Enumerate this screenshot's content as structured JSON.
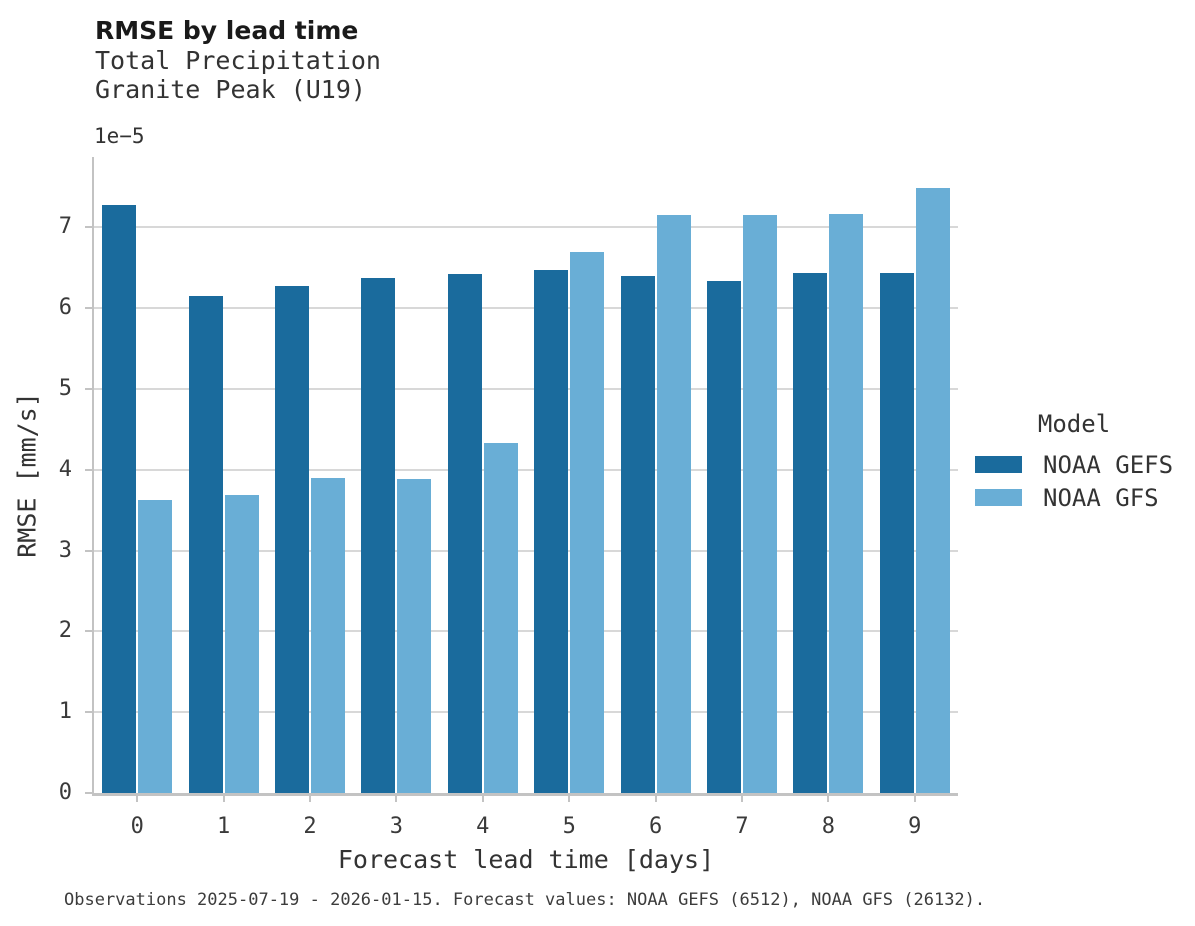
{
  "header": {
    "title": "RMSE by lead time",
    "subtitle_line1": "Total Precipitation",
    "subtitle_line2": "Granite Peak (U19)"
  },
  "legend": {
    "title": "Model"
  },
  "footer": {
    "note": "Observations 2025-07-19 - 2026-01-15. Forecast values: NOAA GEFS (6512), NOAA GFS (26132)."
  },
  "chart_data": {
    "type": "bar",
    "title": "RMSE by lead time",
    "subtitle": [
      "Total Precipitation",
      "Granite Peak (U19)"
    ],
    "xlabel": "Forecast lead time [days]",
    "ylabel": "RMSE [mm/s]",
    "y_offset_label": "1e−5",
    "y_unit_scale": "1e-5",
    "categories": [
      "0",
      "1",
      "2",
      "3",
      "4",
      "5",
      "6",
      "7",
      "8",
      "9"
    ],
    "series": [
      {
        "name": "NOAA GEFS",
        "color": "#1A6B9D",
        "values": [
          7.27,
          6.15,
          6.27,
          6.37,
          6.42,
          6.47,
          6.4,
          6.34,
          6.43,
          6.44
        ]
      },
      {
        "name": "NOAA GFS",
        "color": "#69AED6",
        "values": [
          3.62,
          3.69,
          3.9,
          3.88,
          4.33,
          6.69,
          7.15,
          7.15,
          7.16,
          7.49
        ]
      }
    ],
    "ylim": [
      0,
      7.87
    ],
    "yticks": [
      0,
      1,
      2,
      3,
      4,
      5,
      6,
      7
    ],
    "grid": "horizontal",
    "gridline_color": "#d8d8d8",
    "spine_color": "#c3c3c3",
    "legend_position": "center-right"
  }
}
